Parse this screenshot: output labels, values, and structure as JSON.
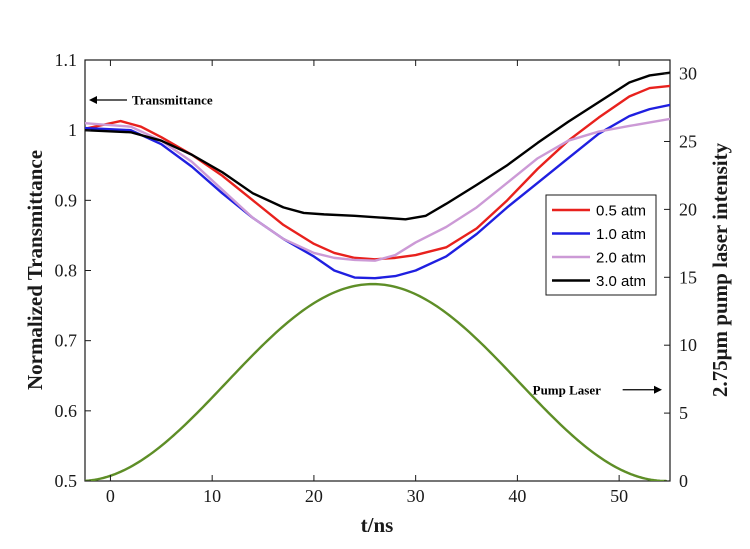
{
  "chart_data": {
    "type": "line",
    "xlabel": "t/ns",
    "ylabel_left": "Normalized Transmittance",
    "ylabel_right": "2.75μm pump laser intensity",
    "xlim": [
      -2.5,
      55
    ],
    "ylim_left": [
      0.5,
      1.1
    ],
    "ylim_right": [
      0,
      31
    ],
    "x_ticks": [
      0,
      10,
      20,
      30,
      40,
      50
    ],
    "x_tick_labels": [
      "0",
      "10",
      "20",
      "30",
      "40",
      "50"
    ],
    "y_left_ticks": [
      0.5,
      0.6,
      0.7,
      0.8,
      0.9,
      1.0,
      1.1
    ],
    "y_left_tick_labels": [
      "0.5",
      "0.6",
      "0.7",
      "0.8",
      "0.9",
      "1",
      "1.1"
    ],
    "y_right_ticks": [
      0,
      5,
      10,
      15,
      20,
      25,
      30
    ],
    "y_right_tick_labels": [
      "0",
      "5",
      "10",
      "15",
      "20",
      "25",
      "30"
    ],
    "legend_position": "right-middle",
    "annotations": [
      {
        "text": "Transmittance",
        "arrow": "left",
        "x": -2.5,
        "y": 1.043
      },
      {
        "text": "Pump Laser",
        "arrow": "right",
        "x": 41.5,
        "y": 0.63
      }
    ],
    "series": [
      {
        "name": "0.5 atm",
        "axis": "left",
        "color": "#e8211d",
        "x": [
          -2.5,
          1,
          3,
          5,
          8,
          11,
          14,
          17,
          20,
          22,
          24,
          26,
          28,
          30,
          33,
          36,
          39,
          42,
          45,
          48,
          51,
          53,
          55
        ],
        "y": [
          1.002,
          1.013,
          1.005,
          0.99,
          0.965,
          0.935,
          0.9,
          0.865,
          0.838,
          0.825,
          0.818,
          0.816,
          0.818,
          0.822,
          0.833,
          0.86,
          0.9,
          0.945,
          0.985,
          1.018,
          1.048,
          1.06,
          1.063
        ]
      },
      {
        "name": "1.0 atm",
        "axis": "left",
        "color": "#1f1fe0",
        "x": [
          -2.5,
          2,
          5,
          8,
          11,
          14,
          17,
          20,
          22,
          24,
          26,
          28,
          30,
          33,
          36,
          39,
          42,
          45,
          48,
          51,
          53,
          55
        ],
        "y": [
          1.003,
          1.0,
          0.98,
          0.948,
          0.91,
          0.875,
          0.845,
          0.82,
          0.8,
          0.79,
          0.789,
          0.792,
          0.8,
          0.82,
          0.852,
          0.89,
          0.925,
          0.96,
          0.995,
          1.02,
          1.03,
          1.036
        ]
      },
      {
        "name": "2.0 atm",
        "axis": "left",
        "color": "#cc9ad6",
        "x": [
          -2.5,
          2,
          5,
          8,
          11,
          14,
          17,
          20,
          22,
          24,
          26,
          28,
          30,
          33,
          36,
          39,
          42,
          45,
          48,
          51,
          55
        ],
        "y": [
          1.01,
          1.005,
          0.985,
          0.955,
          0.915,
          0.875,
          0.845,
          0.825,
          0.818,
          0.815,
          0.814,
          0.822,
          0.84,
          0.862,
          0.89,
          0.925,
          0.96,
          0.985,
          0.998,
          1.006,
          1.016
        ]
      },
      {
        "name": "3.0 atm",
        "axis": "left",
        "color": "#000000",
        "x": [
          -2.5,
          2,
          5,
          8,
          11,
          14,
          17,
          19,
          21,
          24,
          27,
          29,
          31,
          33,
          36,
          39,
          42,
          45,
          48,
          51,
          53,
          55
        ],
        "y": [
          1.0,
          0.997,
          0.985,
          0.965,
          0.94,
          0.91,
          0.89,
          0.882,
          0.88,
          0.878,
          0.875,
          0.873,
          0.878,
          0.895,
          0.922,
          0.95,
          0.982,
          1.012,
          1.04,
          1.068,
          1.078,
          1.082
        ]
      },
      {
        "name": "Pump Laser",
        "axis": "right",
        "color": "#5e8e27",
        "shape": "cosine-pulse",
        "center": 25.8,
        "half_width": 28.8,
        "peak": 14.5
      }
    ]
  }
}
